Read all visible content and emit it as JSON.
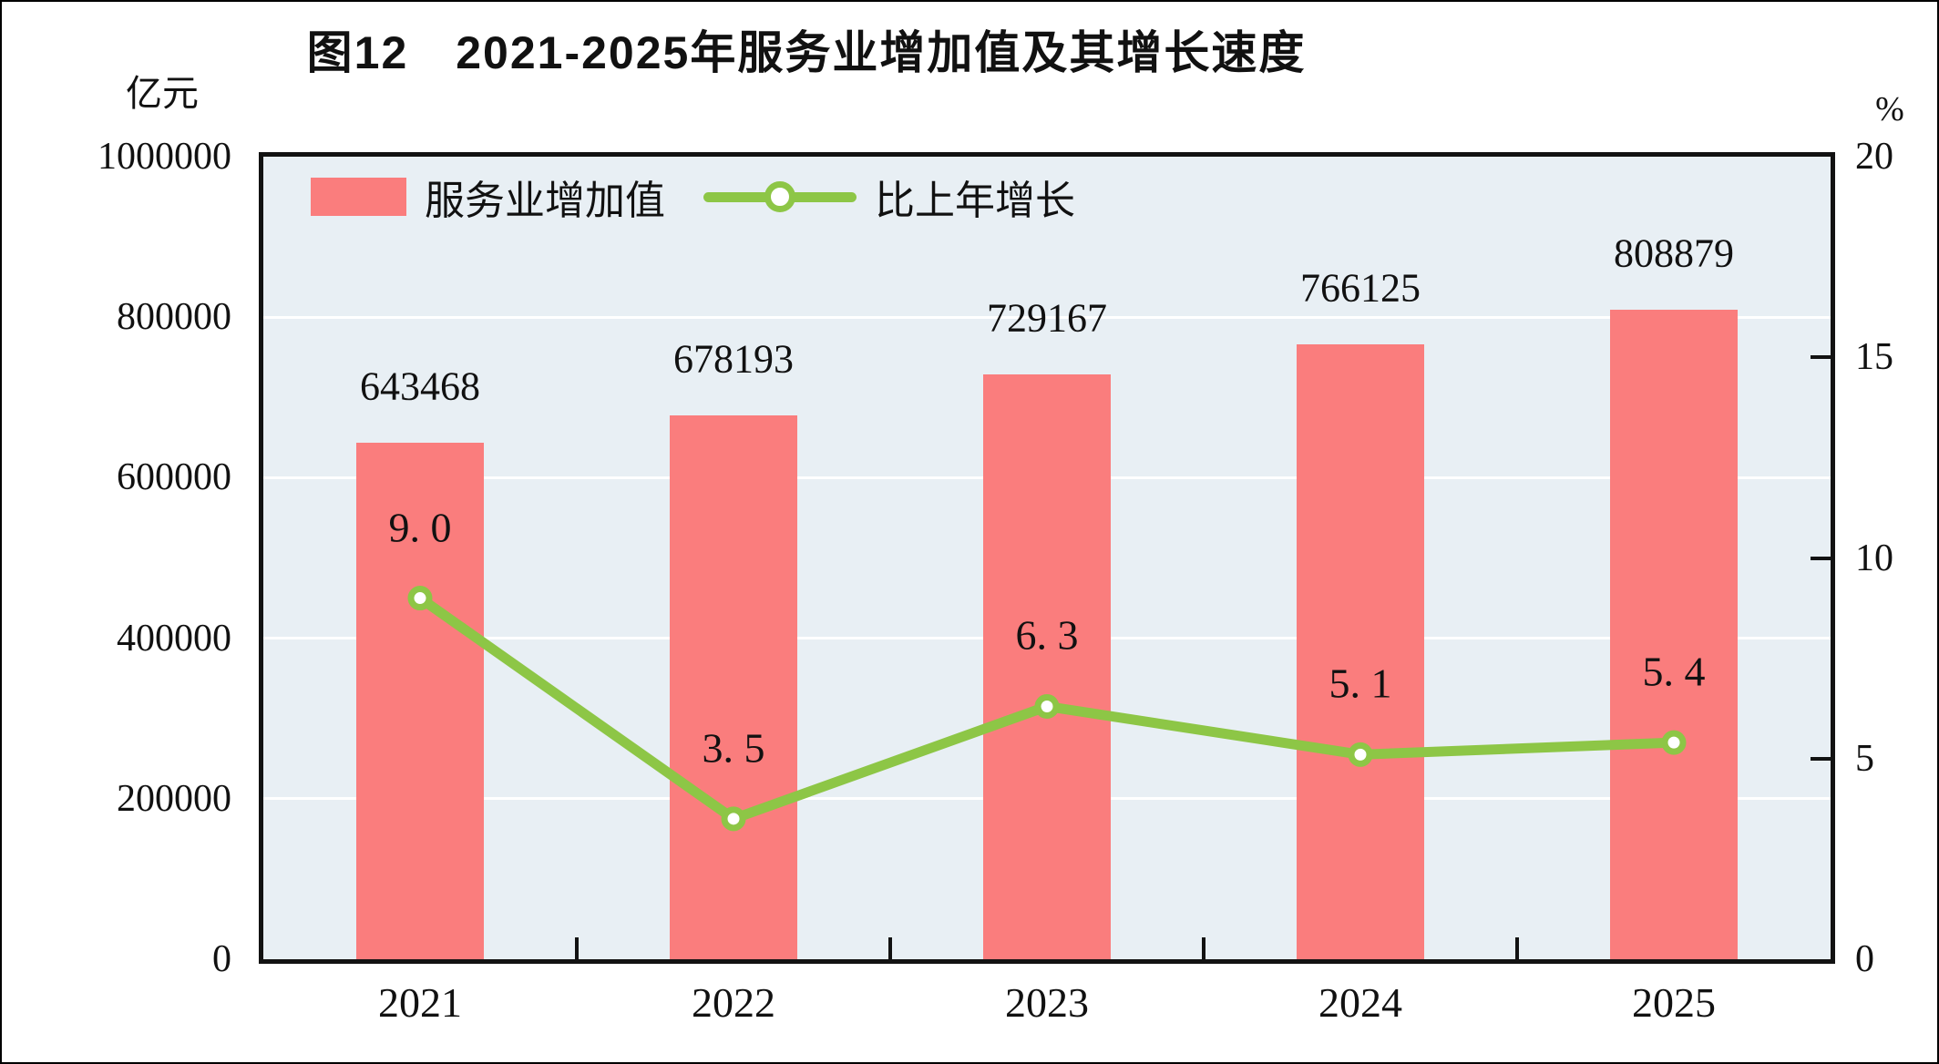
{
  "figure": {
    "title": "图12　2021-2025年服务业增加值及其增长速度",
    "left_axis_unit": "亿元",
    "right_axis_unit": "%"
  },
  "legend": [
    {
      "label": "服务业增加值",
      "type": "bar"
    },
    {
      "label": "比上年增长",
      "type": "line"
    }
  ],
  "chart_data": {
    "type": "bar+line combo",
    "title": "图12　2021-2025年服务业增加值及其增长速度",
    "categories": [
      "2021",
      "2022",
      "2023",
      "2024",
      "2025"
    ],
    "series": [
      {
        "name": "服务业增加值",
        "type": "bar",
        "axis": "left",
        "values": [
          643468,
          678193,
          729167,
          766125,
          808879
        ],
        "labels": [
          "643468",
          "678193",
          "729167",
          "766125",
          "808879"
        ]
      },
      {
        "name": "比上年增长",
        "type": "line",
        "axis": "right",
        "values": [
          9.0,
          3.5,
          6.3,
          5.1,
          5.4
        ],
        "labels": [
          "9. 0",
          "3. 5",
          "6. 3",
          "5. 1",
          "5. 4"
        ]
      }
    ],
    "left_axis": {
      "unit": "亿元",
      "min": 0,
      "max": 1000000,
      "tick_labels": [
        "1000000",
        "800000",
        "600000",
        "400000",
        "200000",
        "0"
      ]
    },
    "right_axis": {
      "unit": "%",
      "min": 0,
      "max": 20,
      "tick_labels": [
        "20",
        "15",
        "10",
        "5",
        "0"
      ]
    },
    "grid": "horizontal white gridlines at left-axis major units (every 200000)",
    "legend_position": "top-left inside plot area",
    "colors": {
      "bar": "#FA7D7D",
      "line": "#8DC646",
      "marker_fill": "#FFFFFF",
      "plot_bg": "#E8EFF4",
      "grid": "#FFFFFF",
      "text": "#111111"
    }
  }
}
